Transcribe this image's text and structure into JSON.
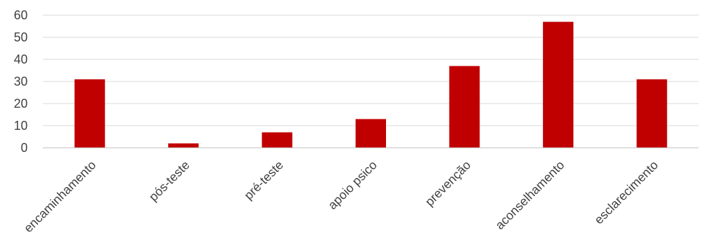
{
  "chart_data": {
    "type": "bar",
    "categories": [
      "encaminhamento",
      "pós-teste",
      "pré-teste",
      "apoio psico",
      "prevenção",
      "aconselhamento",
      "esclarecimento"
    ],
    "values": [
      31,
      2,
      7,
      13,
      37,
      57,
      31
    ],
    "ylim": [
      0,
      60
    ],
    "yticks": [
      0,
      10,
      20,
      30,
      40,
      50,
      60
    ],
    "grid": true,
    "legend": "none",
    "bar_color": "#c00000",
    "category_label_rotation": "diagonal"
  }
}
